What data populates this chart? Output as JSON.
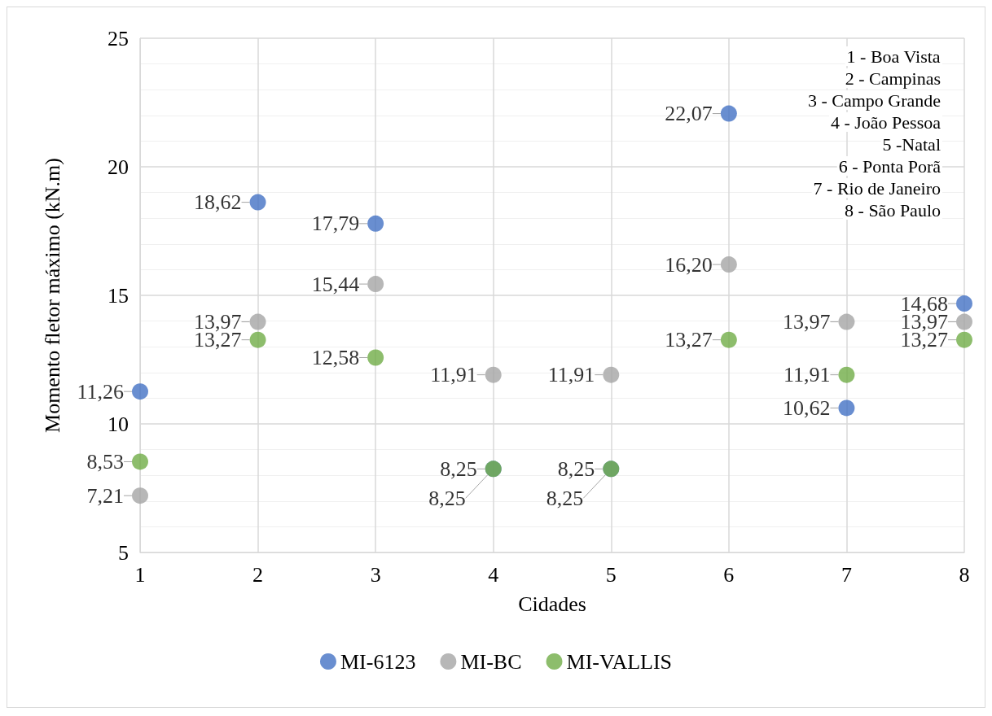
{
  "chart_data": {
    "type": "scatter",
    "xlabel": "Cidades",
    "ylabel": "Momento fletor máximo (kN.m)",
    "x": [
      1,
      2,
      3,
      4,
      5,
      6,
      7,
      8
    ],
    "series": [
      {
        "name": "MI-6123",
        "color": "#4472c4",
        "values": [
          11.26,
          18.62,
          17.79,
          8.25,
          8.25,
          22.07,
          10.62,
          14.68
        ],
        "value_labels": [
          "11,26",
          "18,62",
          "17,79",
          "8,25",
          "8,25",
          "22,07",
          "10,62",
          "14,68"
        ]
      },
      {
        "name": "MI-BC",
        "color": "#a5a5a5",
        "values": [
          7.21,
          13.97,
          15.44,
          11.91,
          11.91,
          16.2,
          13.97,
          13.97
        ],
        "value_labels": [
          "7,21",
          "13,97",
          "15,44",
          "11,91",
          "11,91",
          "16,20",
          "13,97",
          "13,97"
        ]
      },
      {
        "name": "MI-VALLIS",
        "color": "#70ad47",
        "values": [
          8.53,
          13.27,
          12.58,
          8.25,
          8.25,
          13.27,
          11.91,
          13.27
        ],
        "value_labels": [
          "8,53",
          "13,27",
          "12,58",
          "8,25",
          "8,25",
          "13,27",
          "11,91",
          "13,27"
        ]
      }
    ],
    "xlim": [
      1,
      8
    ],
    "xticks": [
      1,
      2,
      3,
      4,
      5,
      6,
      7,
      8
    ],
    "ylim": [
      5,
      25
    ],
    "yticks": [
      5,
      10,
      15,
      20,
      25
    ],
    "grid": true,
    "legend": "bottom",
    "marker": "circle",
    "annotations": [
      "1 - Boa Vista",
      "2 - Campinas",
      "3 - Campo Grande",
      "4 - João Pessoa",
      "5 -Natal",
      "6 - Ponta Porã",
      "7 - Rio de Janeiro",
      "8 - São Paulo"
    ]
  }
}
